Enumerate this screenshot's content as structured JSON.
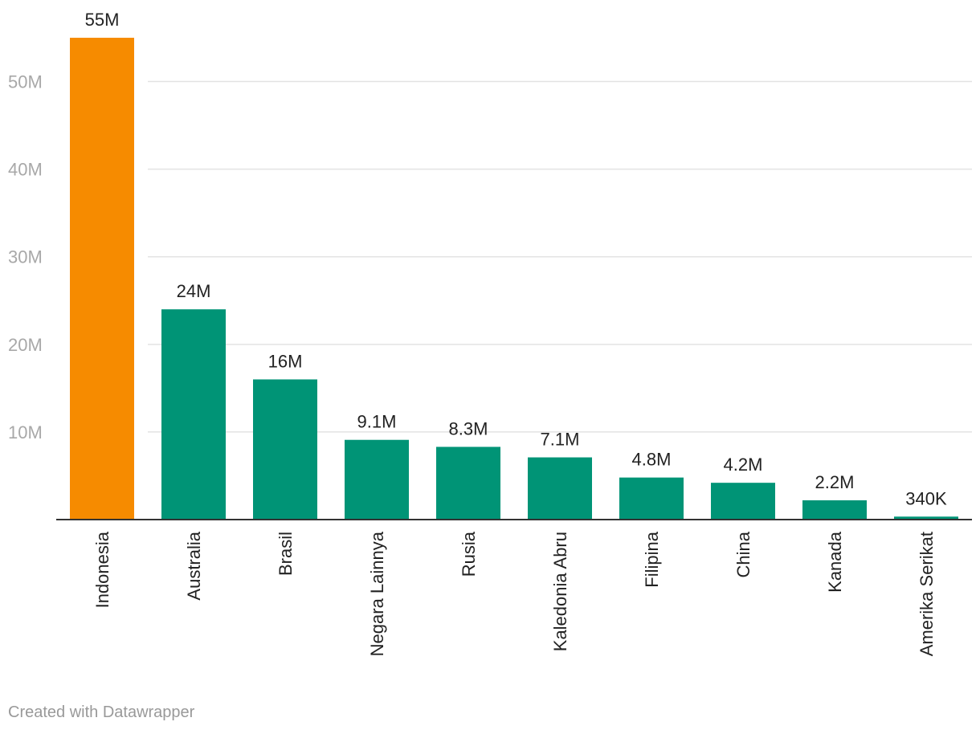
{
  "chart_data": {
    "type": "bar",
    "categories": [
      "Indonesia",
      "Australia",
      "Brasil",
      "Negara Lainnya",
      "Rusia",
      "Kaledonia Abru",
      "Filipina",
      "China",
      "Kanada",
      "Amerika Serikat"
    ],
    "values": [
      55000000,
      24000000,
      16000000,
      9100000,
      8300000,
      7100000,
      4800000,
      4200000,
      2200000,
      340000
    ],
    "data_labels": [
      "55M",
      "24M",
      "16M",
      "9.1M",
      "8.3M",
      "7.1M",
      "4.8M",
      "4.2M",
      "2.2M",
      "340K"
    ],
    "highlight_index": 0,
    "ylim": [
      0,
      55000000
    ],
    "yticks": [
      10000000,
      20000000,
      30000000,
      40000000,
      50000000
    ],
    "ytick_labels": [
      "10M",
      "20M",
      "30M",
      "40M",
      "50M"
    ],
    "grid": true,
    "colors": {
      "highlight": "#f68b00",
      "default": "#009476"
    }
  },
  "footer": {
    "credit": "Created with Datawrapper"
  }
}
